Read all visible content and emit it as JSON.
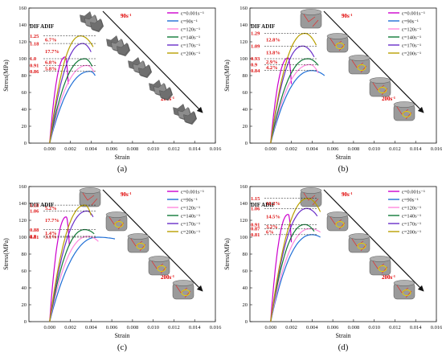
{
  "figure": {
    "panels": [
      {
        "label": "(a)",
        "specimens": "shards",
        "dif": [
          "1.25",
          "1.18",
          "1.0",
          "0.91",
          "0.86"
        ],
        "adif": [
          "6.7%",
          "17.7%",
          "6.8%",
          "5.8%"
        ]
      },
      {
        "label": "(b)",
        "specimens": "cylinders",
        "dif": [
          "1.29",
          "1.09",
          "0.93",
          "0.9",
          "0.84"
        ],
        "adif": [
          "12.8%",
          "13.8%",
          "2.9%",
          "4.2%"
        ]
      },
      {
        "label": "(c)",
        "specimens": "cylinders",
        "dif": [
          "1.13",
          "1.06",
          "0.88",
          "0.8",
          "0.81"
        ],
        "adif": [
          "5.2%",
          "17.7%",
          "1.4%",
          "3.1%"
        ]
      },
      {
        "label": "(d)",
        "specimens": "cylinders",
        "dif": [
          "1.15",
          "1.06",
          "0.91",
          "0.87",
          "0.81"
        ],
        "adif": [
          "10.2%",
          "14.5%",
          "3.2%",
          "6%"
        ]
      }
    ],
    "dif_heading": "DIF ADIF",
    "rate_top": "90s",
    "rate_bottom": "200s",
    "rate_exp": "-1"
  },
  "chart_data": {
    "type": "line",
    "xlabel": "Strain",
    "ylabel": "Stress(MPa)",
    "xlim": [
      -0.002,
      0.016
    ],
    "ylim": [
      0,
      160
    ],
    "xticks": [
      "0.000",
      "0.002",
      "0.004",
      "0.006",
      "0.008",
      "0.010",
      "0.012",
      "0.014",
      "0.016"
    ],
    "yticks": [
      "0",
      "20",
      "40",
      "60",
      "80",
      "100",
      "120",
      "140",
      "160"
    ],
    "legend": [
      "ε=0.001s⁻¹",
      "ε=90s⁻¹",
      "ε=120s⁻¹",
      "ε=140s⁻¹",
      "ε=170s⁻¹",
      "ε=200s⁻¹"
    ],
    "colors": [
      "#cc00cc",
      "#1f6fd6",
      "#ff88dd",
      "#117a38",
      "#6a2fc9",
      "#b8a000"
    ],
    "panels": [
      {
        "series": [
          {
            "peak_x": 0.0015,
            "peak_y": 102,
            "end_x": 0.0018,
            "end_y": 70
          },
          {
            "peak_x": 0.0039,
            "peak_y": 85,
            "end_x": 0.0044,
            "end_y": 80
          },
          {
            "peak_x": 0.0036,
            "peak_y": 92,
            "end_x": 0.0043,
            "end_y": 84
          },
          {
            "peak_x": 0.0034,
            "peak_y": 100,
            "end_x": 0.0041,
            "end_y": 91
          },
          {
            "peak_x": 0.0032,
            "peak_y": 118,
            "end_x": 0.004,
            "end_y": 108
          },
          {
            "peak_x": 0.003,
            "peak_y": 127,
            "end_x": 0.0042,
            "end_y": 114
          }
        ]
      },
      {
        "series": [
          {
            "peak_x": 0.0017,
            "peak_y": 101,
            "end_x": 0.002,
            "end_y": 70
          },
          {
            "peak_x": 0.004,
            "peak_y": 86,
            "end_x": 0.0052,
            "end_y": 80
          },
          {
            "peak_x": 0.0038,
            "peak_y": 93,
            "end_x": 0.0046,
            "end_y": 83
          },
          {
            "peak_x": 0.0036,
            "peak_y": 100,
            "end_x": 0.0046,
            "end_y": 92
          },
          {
            "peak_x": 0.0031,
            "peak_y": 115,
            "end_x": 0.0042,
            "end_y": 102
          },
          {
            "peak_x": 0.0033,
            "peak_y": 130,
            "end_x": 0.0044,
            "end_y": 116
          }
        ]
      },
      {
        "series": [
          {
            "peak_x": 0.0016,
            "peak_y": 124,
            "end_x": 0.0019,
            "end_y": 90
          },
          {
            "peak_x": 0.0046,
            "peak_y": 100,
            "end_x": 0.0063,
            "end_y": 98
          },
          {
            "peak_x": 0.0037,
            "peak_y": 101,
            "end_x": 0.0047,
            "end_y": 95
          },
          {
            "peak_x": 0.0034,
            "peak_y": 109,
            "end_x": 0.0043,
            "end_y": 104
          },
          {
            "peak_x": 0.0036,
            "peak_y": 131,
            "end_x": 0.0042,
            "end_y": 124
          },
          {
            "peak_x": 0.0034,
            "peak_y": 138,
            "end_x": 0.004,
            "end_y": 126
          }
        ]
      },
      {
        "series": [
          {
            "peak_x": 0.0017,
            "peak_y": 127,
            "end_x": 0.002,
            "end_y": 94
          },
          {
            "peak_x": 0.004,
            "peak_y": 103,
            "end_x": 0.0048,
            "end_y": 100
          },
          {
            "peak_x": 0.0038,
            "peak_y": 110,
            "end_x": 0.0048,
            "end_y": 106
          },
          {
            "peak_x": 0.0033,
            "peak_y": 115,
            "end_x": 0.0042,
            "end_y": 107
          },
          {
            "peak_x": 0.0035,
            "peak_y": 134,
            "end_x": 0.0045,
            "end_y": 125
          },
          {
            "peak_x": 0.0036,
            "peak_y": 146,
            "end_x": 0.0048,
            "end_y": 130
          }
        ]
      }
    ]
  }
}
